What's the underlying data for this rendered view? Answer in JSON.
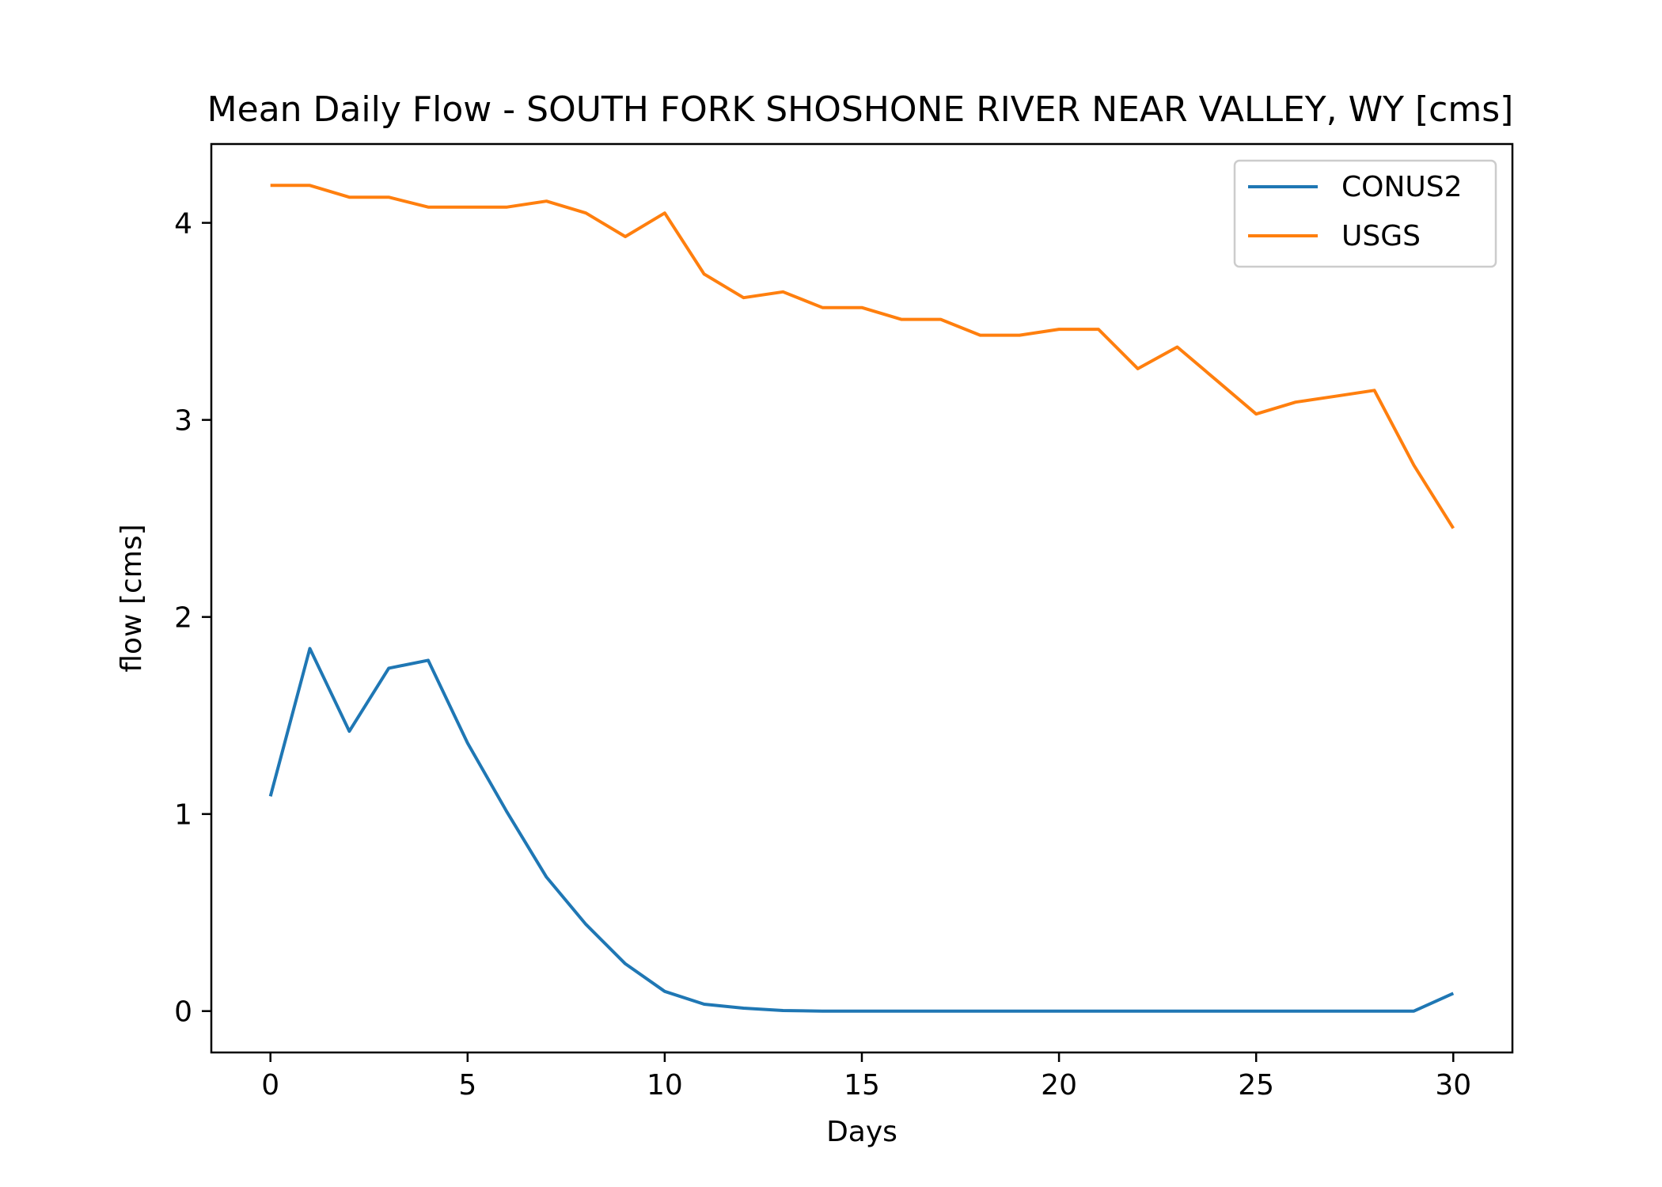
{
  "chart_data": {
    "type": "line",
    "title": "Mean Daily Flow - SOUTH FORK SHOSHONE RIVER NEAR VALLEY, WY [cms]",
    "xlabel": "Days",
    "ylabel": "flow [cms]",
    "xlim": [
      -1.5,
      31.5
    ],
    "ylim": [
      -0.21,
      4.4
    ],
    "xticks": [
      0,
      5,
      10,
      15,
      20,
      25,
      30
    ],
    "yticks": [
      0,
      1,
      2,
      3,
      4
    ],
    "legend_position": "upper right",
    "grid": false,
    "series": [
      {
        "name": "CONUS2",
        "color": "#1f77b4",
        "x": [
          0,
          1,
          2,
          3,
          4,
          5,
          6,
          7,
          8,
          9,
          10,
          11,
          12,
          13,
          14,
          15,
          16,
          17,
          18,
          19,
          20,
          21,
          22,
          23,
          24,
          25,
          26,
          27,
          28,
          29,
          30
        ],
        "y": [
          1.09,
          1.84,
          1.42,
          1.74,
          1.78,
          1.36,
          1.01,
          0.68,
          0.44,
          0.24,
          0.1,
          0.035,
          0.015,
          0.003,
          0,
          0,
          0,
          0,
          0,
          0,
          0,
          0,
          0,
          0,
          0,
          0,
          0,
          0,
          0,
          0,
          0.09
        ]
      },
      {
        "name": "USGS",
        "color": "#ff7f0e",
        "x": [
          0,
          1,
          2,
          3,
          4,
          5,
          6,
          7,
          8,
          9,
          10,
          11,
          12,
          13,
          14,
          15,
          16,
          17,
          18,
          19,
          20,
          21,
          22,
          23,
          24,
          25,
          26,
          27,
          28,
          29,
          30
        ],
        "y": [
          4.19,
          4.19,
          4.13,
          4.13,
          4.08,
          4.08,
          4.08,
          4.11,
          4.05,
          3.93,
          4.05,
          3.74,
          3.62,
          3.65,
          3.57,
          3.57,
          3.51,
          3.51,
          3.43,
          3.43,
          3.46,
          3.46,
          3.26,
          3.37,
          3.2,
          3.03,
          3.09,
          3.12,
          3.15,
          2.77,
          2.45
        ]
      }
    ]
  }
}
